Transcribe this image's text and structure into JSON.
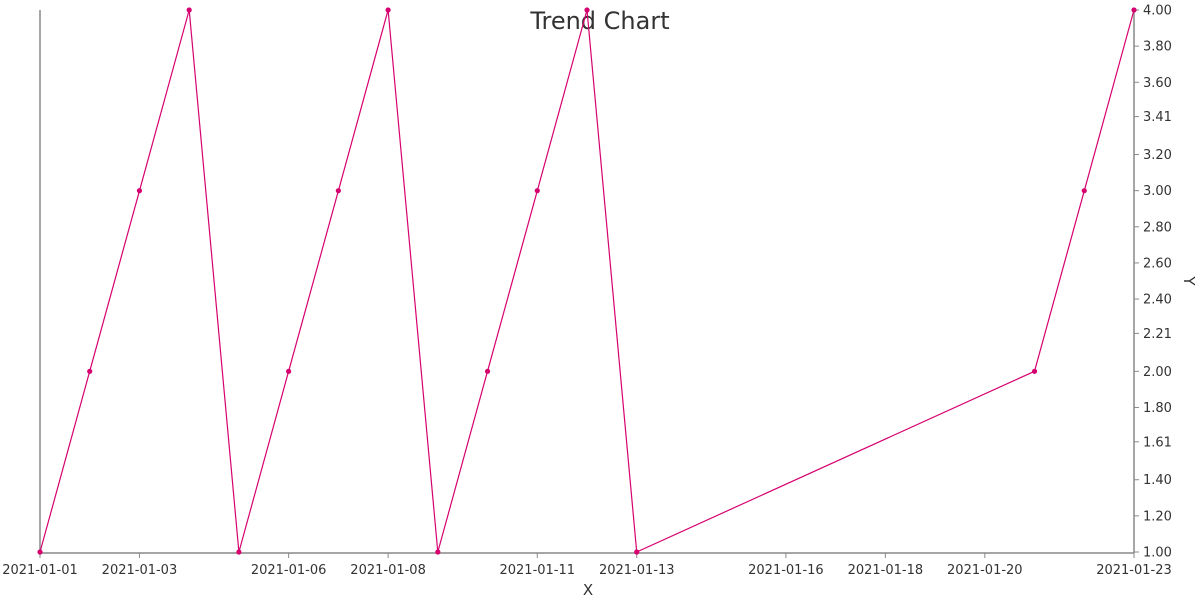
{
  "chart_data": {
    "type": "line",
    "title": "Trend Chart",
    "xlabel": "X",
    "ylabel": "Y",
    "x": [
      "2021-01-01",
      "2021-01-02",
      "2021-01-03",
      "2021-01-04",
      "2021-01-05",
      "2021-01-06",
      "2021-01-07",
      "2021-01-08",
      "2021-01-09",
      "2021-01-10",
      "2021-01-11",
      "2021-01-12",
      "2021-01-13",
      "2021-01-21",
      "2021-01-22",
      "2021-01-23"
    ],
    "series": [
      {
        "values": [
          1,
          2,
          3,
          4,
          1,
          2,
          3,
          4,
          1,
          2,
          3,
          4,
          1,
          2,
          3,
          4
        ]
      }
    ],
    "xlim": [
      "2021-01-01",
      "2021-01-23"
    ],
    "ylim": [
      1,
      4
    ],
    "x_ticks": [
      "2021-01-01",
      "2021-01-03",
      "2021-01-06",
      "2021-01-08",
      "2021-01-11",
      "2021-01-13",
      "2021-01-16",
      "2021-01-18",
      "2021-01-20",
      "2021-01-23"
    ],
    "y_ticks": [
      "1.00",
      "1.20",
      "1.40",
      "1.61",
      "1.80",
      "2.00",
      "2.21",
      "2.40",
      "2.60",
      "2.80",
      "3.00",
      "3.20",
      "3.41",
      "3.60",
      "3.80",
      "4.00"
    ],
    "y_axis_side": "right",
    "grid": false,
    "legend": "none",
    "line_color": "#d6006f",
    "axis_color": "#888888"
  }
}
